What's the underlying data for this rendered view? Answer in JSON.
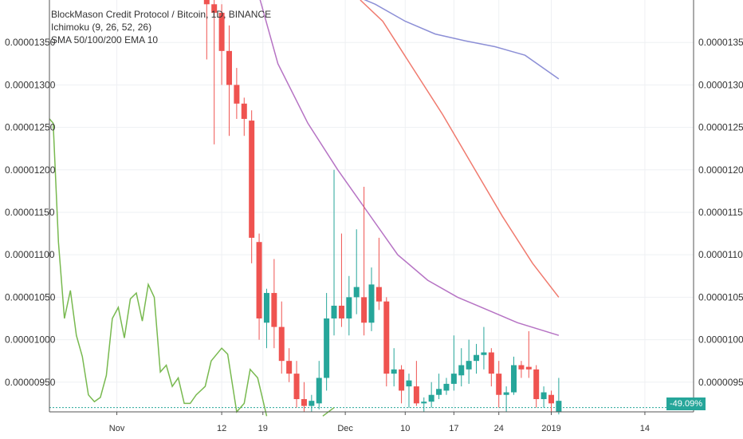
{
  "legend": {
    "title": "BlockMason Credit Protocol / Bitcoin, 1D, BINANCE",
    "line2": "Ichimoku (9, 26, 52, 26)",
    "line3": "SMA 50/100/200 EMA 10"
  },
  "price_badge": "-49.09%",
  "colors": {
    "up": "#26a69a",
    "down": "#ef5350",
    "sma_blue": "#8c8fd6",
    "sma_purple": "#b673c4",
    "ema_red": "#f07a6e",
    "ichimoku_green": "#78b94f",
    "grid": "#eef0f3"
  },
  "chart_data": {
    "type": "candlestick",
    "y_ticks": [
      "0.00000950",
      "0.00001000",
      "0.00001050",
      "0.00001100",
      "0.00001150",
      "0.00001200",
      "0.00001250",
      "0.00001300",
      "0.00001350"
    ],
    "y_tick_values": [
      9.5e-06,
      1e-05,
      1.05e-05,
      1.1e-05,
      1.15e-05,
      1.2e-05,
      1.25e-05,
      1.3e-05,
      1.35e-05
    ],
    "ylim": [
      9.15e-06,
      1.4e-05
    ],
    "x_ticks": [
      "Nov",
      "12",
      "19",
      "Dec",
      "10",
      "17",
      "24",
      "2019",
      "14"
    ],
    "x_tick_days": [
      -4.5,
      9.5,
      15,
      26,
      34,
      40.5,
      46.5,
      53.5,
      66
    ],
    "xlim": [
      -13.5,
      72.5
    ],
    "candles": [
      {
        "d": 7.5,
        "o": 1.41e-05,
        "h": 1.42e-05,
        "l": 1.33e-05,
        "c": 1.395e-05
      },
      {
        "d": 8.5,
        "o": 1.395e-05,
        "h": 1.41e-05,
        "l": 1.23e-05,
        "c": 1.385e-05
      },
      {
        "d": 9.5,
        "o": 1.385e-05,
        "h": 1.395e-05,
        "l": 1.3e-05,
        "c": 1.34e-05
      },
      {
        "d": 10.5,
        "o": 1.34e-05,
        "h": 1.37e-05,
        "l": 1.24e-05,
        "c": 1.3e-05
      },
      {
        "d": 11.5,
        "o": 1.3e-05,
        "h": 1.32e-05,
        "l": 1.26e-05,
        "c": 1.278e-05
      },
      {
        "d": 12.5,
        "o": 1.278e-05,
        "h": 1.285e-05,
        "l": 1.24e-05,
        "c": 1.26e-05
      },
      {
        "d": 13.5,
        "o": 1.258e-05,
        "h": 1.27e-05,
        "l": 1.09e-05,
        "c": 1.12e-05
      },
      {
        "d": 14.5,
        "o": 1.115e-05,
        "h": 1.125e-05,
        "l": 1e-05,
        "c": 1.025e-05
      },
      {
        "d": 15.5,
        "o": 1.02e-05,
        "h": 1.06e-05,
        "l": 9.9e-06,
        "c": 1.055e-05
      },
      {
        "d": 16.5,
        "o": 1.055e-05,
        "h": 1.095e-05,
        "l": 9.9e-06,
        "c": 1.015e-05
      },
      {
        "d": 17.5,
        "o": 1.015e-05,
        "h": 1.045e-05,
        "l": 9.6e-06,
        "c": 9.75e-06
      },
      {
        "d": 18.5,
        "o": 9.75e-06,
        "h": 9.9e-06,
        "l": 9.5e-06,
        "c": 9.6e-06
      },
      {
        "d": 19.5,
        "o": 9.6e-06,
        "h": 9.75e-06,
        "l": 9.2e-06,
        "c": 9.3e-06
      },
      {
        "d": 20.5,
        "o": 9.3e-06,
        "h": 9.5e-06,
        "l": 9.15e-06,
        "c": 9.22e-06
      },
      {
        "d": 21.5,
        "o": 9.22e-06,
        "h": 9.35e-06,
        "l": 9.15e-06,
        "c": 9.28e-06
      },
      {
        "d": 22.5,
        "o": 9.25e-06,
        "h": 9.75e-06,
        "l": 9.18e-06,
        "c": 9.55e-06
      },
      {
        "d": 23.5,
        "o": 9.55e-06,
        "h": 1.055e-05,
        "l": 9.4e-06,
        "c": 1.025e-05
      },
      {
        "d": 24.5,
        "o": 1.025e-05,
        "h": 1.2e-05,
        "l": 1.005e-05,
        "c": 1.04e-05
      },
      {
        "d": 25.5,
        "o": 1.04e-05,
        "h": 1.125e-05,
        "l": 1.015e-05,
        "c": 1.025e-05
      },
      {
        "d": 26.5,
        "o": 1.025e-05,
        "h": 1.075e-05,
        "l": 1.005e-05,
        "c": 1.05e-05
      },
      {
        "d": 27.5,
        "o": 1.05e-05,
        "h": 1.13e-05,
        "l": 1.03e-05,
        "c": 1.062e-05
      },
      {
        "d": 28.5,
        "o": 1.05e-05,
        "h": 1.18e-05,
        "l": 1.005e-05,
        "c": 1.02e-05
      },
      {
        "d": 29.5,
        "o": 1.02e-05,
        "h": 1.085e-05,
        "l": 1.01e-05,
        "c": 1.065e-05
      },
      {
        "d": 30.5,
        "o": 1.062e-05,
        "h": 1.12e-05,
        "l": 1.035e-05,
        "c": 1.045e-05
      },
      {
        "d": 31.5,
        "o": 1.045e-05,
        "h": 1.05e-05,
        "l": 9.45e-06,
        "c": 9.6e-06
      },
      {
        "d": 32.5,
        "o": 9.6e-06,
        "h": 9.9e-06,
        "l": 9.45e-06,
        "c": 9.65e-06
      },
      {
        "d": 33.5,
        "o": 9.65e-06,
        "h": 9.7e-06,
        "l": 9.25e-06,
        "c": 9.4e-06
      },
      {
        "d": 34.5,
        "o": 9.45e-06,
        "h": 9.6e-06,
        "l": 9.2e-06,
        "c": 9.52e-06
      },
      {
        "d": 35.5,
        "o": 9.45e-06,
        "h": 9.75e-06,
        "l": 9.22e-06,
        "c": 9.25e-06
      },
      {
        "d": 36.5,
        "o": 9.25e-06,
        "h": 9.32e-06,
        "l": 9.15e-06,
        "c": 9.27e-06
      },
      {
        "d": 37.5,
        "o": 9.27e-06,
        "h": 9.5e-06,
        "l": 9.2e-06,
        "c": 9.35e-06
      },
      {
        "d": 38.5,
        "o": 9.35e-06,
        "h": 9.6e-06,
        "l": 9.3e-06,
        "c": 9.42e-06
      },
      {
        "d": 39.5,
        "o": 9.4e-06,
        "h": 9.55e-06,
        "l": 9.35e-06,
        "c": 9.48e-06
      },
      {
        "d": 40.5,
        "o": 9.48e-06,
        "h": 1.005e-05,
        "l": 9.4e-06,
        "c": 9.6e-06
      },
      {
        "d": 41.5,
        "o": 9.58e-06,
        "h": 9.9e-06,
        "l": 9.45e-06,
        "c": 9.7e-06
      },
      {
        "d": 42.5,
        "o": 9.65e-06,
        "h": 1e-05,
        "l": 9.48e-06,
        "c": 9.75e-06
      },
      {
        "d": 43.5,
        "o": 9.75e-06,
        "h": 9.95e-06,
        "l": 9.6e-06,
        "c": 9.82e-06
      },
      {
        "d": 44.5,
        "o": 9.82e-06,
        "h": 1.015e-05,
        "l": 9.65e-06,
        "c": 9.85e-06
      },
      {
        "d": 45.5,
        "o": 9.85e-06,
        "h": 9.9e-06,
        "l": 9.45e-06,
        "c": 9.6e-06
      },
      {
        "d": 46.5,
        "o": 9.6e-06,
        "h": 9.75e-06,
        "l": 9.2e-06,
        "c": 9.35e-06
      },
      {
        "d": 47.5,
        "o": 9.35e-06,
        "h": 9.45e-06,
        "l": 9.15e-06,
        "c": 9.38e-06
      },
      {
        "d": 48.5,
        "o": 9.38e-06,
        "h": 9.8e-06,
        "l": 9.35e-06,
        "c": 9.7e-06
      },
      {
        "d": 49.5,
        "o": 9.7e-06,
        "h": 9.75e-06,
        "l": 9.55e-06,
        "c": 9.65e-06
      },
      {
        "d": 50.5,
        "o": 9.68e-06,
        "h": 1.01e-05,
        "l": 9.55e-06,
        "c": 9.65e-06
      },
      {
        "d": 51.5,
        "o": 9.65e-06,
        "h": 9.7e-06,
        "l": 9.2e-06,
        "c": 9.3e-06
      },
      {
        "d": 52.5,
        "o": 9.3e-06,
        "h": 9.45e-06,
        "l": 9.2e-06,
        "c": 9.38e-06
      },
      {
        "d": 53.5,
        "o": 9.35e-06,
        "h": 9.4e-06,
        "l": 9.15e-06,
        "c": 9.25e-06
      },
      {
        "d": 54.5,
        "o": 9.15e-06,
        "h": 9.55e-06,
        "l": 9.12e-06,
        "c": 9.28e-06
      }
    ],
    "sma_blue": [
      [
        22.5,
        1.42e-05
      ],
      [
        26,
        1.41e-05
      ],
      [
        30,
        1.395e-05
      ],
      [
        34,
        1.375e-05
      ],
      [
        38,
        1.36e-05
      ],
      [
        42,
        1.352e-05
      ],
      [
        46,
        1.345e-05
      ],
      [
        50,
        1.335e-05
      ],
      [
        54.5,
        1.307e-05
      ]
    ],
    "ema_red": [
      [
        28,
        1.4e-05
      ],
      [
        31,
        1.375e-05
      ],
      [
        35,
        1.32e-05
      ],
      [
        39,
        1.265e-05
      ],
      [
        43,
        1.205e-05
      ],
      [
        47,
        1.145e-05
      ],
      [
        51,
        1.09e-05
      ],
      [
        54.5,
        1.05e-05
      ]
    ],
    "sma_purple": [
      [
        14,
        1.42e-05
      ],
      [
        17,
        1.325e-05
      ],
      [
        21,
        1.255e-05
      ],
      [
        25,
        1.2e-05
      ],
      [
        29,
        1.15e-05
      ],
      [
        33,
        1.1e-05
      ],
      [
        37,
        1.07e-05
      ],
      [
        41,
        1.05e-05
      ],
      [
        45,
        1.035e-05
      ],
      [
        49,
        1.02e-05
      ],
      [
        54.5,
        1.005e-05
      ]
    ],
    "ichimoku_green": [
      [
        -13.5,
        1.26e-05
      ],
      [
        -13,
        1.255e-05
      ],
      [
        -12.3,
        1.115e-05
      ],
      [
        -11.5,
        1.025e-05
      ],
      [
        -10.7,
        1.058e-05
      ],
      [
        -9.9,
        1.005e-05
      ],
      [
        -9.1,
        9.8e-06
      ],
      [
        -8.3,
        9.35e-06
      ],
      [
        -7.5,
        9.27e-06
      ],
      [
        -6.7,
        9.32e-06
      ],
      [
        -5.9,
        9.58e-06
      ],
      [
        -5.1,
        1.025e-05
      ],
      [
        -4.3,
        1.038e-05
      ],
      [
        -3.5,
        1.002e-05
      ],
      [
        -2.7,
        1.048e-05
      ],
      [
        -1.9,
        1.055e-05
      ],
      [
        -1.1,
        1.022e-05
      ],
      [
        -0.3,
        1.065e-05
      ],
      [
        0.5,
        1.05e-05
      ],
      [
        1.3,
        9.62e-06
      ],
      [
        2.1,
        9.7e-06
      ],
      [
        2.9,
        9.45e-06
      ],
      [
        3.7,
        9.55e-06
      ],
      [
        4.5,
        9.25e-06
      ],
      [
        5.3,
        9.25e-06
      ],
      [
        6.1,
        9.35e-06
      ],
      [
        7.3,
        9.45e-06
      ],
      [
        8.1,
        9.75e-06
      ],
      [
        9.5,
        9.9e-06
      ],
      [
        10.3,
        9.83e-06
      ],
      [
        11.5,
        9.15e-06
      ],
      [
        12.5,
        9.25e-06
      ],
      [
        13.3,
        9.65e-06
      ],
      [
        14.3,
        9.55e-06
      ],
      [
        15.5,
        9.1e-06
      ]
    ],
    "ichimoku_green_b": [
      [
        23,
        9.1e-06
      ],
      [
        24.5,
        9.2e-06
      ]
    ],
    "last_price_line": 9.2e-06
  }
}
